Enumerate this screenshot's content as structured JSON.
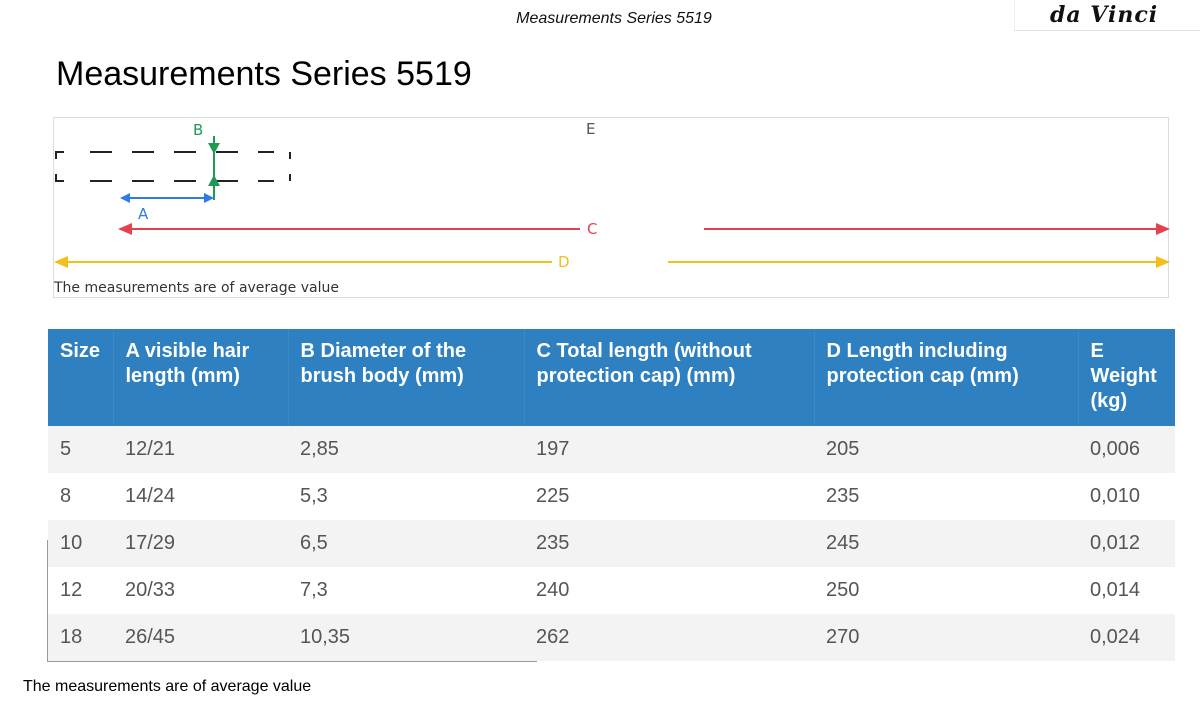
{
  "header": {
    "title": "Measurements Series 5519",
    "logo_text": "da Vinci"
  },
  "page_title": "Measurements Series 5519",
  "diagram": {
    "labels": {
      "a": "A",
      "b": "B",
      "c": "C",
      "d": "D",
      "e": "E"
    },
    "note": "The measurements are of average value",
    "colors": {
      "a": "#2f7ae5",
      "b": "#1e9a56",
      "c": "#e0434f",
      "d": "#f2c01d"
    }
  },
  "table": {
    "columns": [
      "Size",
      "A visible hair length (mm)",
      "B Diameter of the brush body (mm)",
      "C Total length (without protection cap) (mm)",
      "D Length including protection cap (mm)",
      "E Weight (kg)"
    ],
    "rows": [
      [
        "5",
        "12/21",
        "2,85",
        "197",
        "205",
        "0,006"
      ],
      [
        "8",
        "14/24",
        "5,3",
        "225",
        "235",
        "0,010"
      ],
      [
        "10",
        "17/29",
        "6,5",
        "235",
        "245",
        "0,012"
      ],
      [
        "12",
        "20/33",
        "7,3",
        "240",
        "250",
        "0,014"
      ],
      [
        "18",
        "26/45",
        "10,35",
        "262",
        "270",
        "0,024"
      ]
    ]
  },
  "footer_note": "The measurements are of average value",
  "colors": {
    "header_bg": "#2f80c0",
    "row_alt_bg": "#f3f3f3"
  }
}
